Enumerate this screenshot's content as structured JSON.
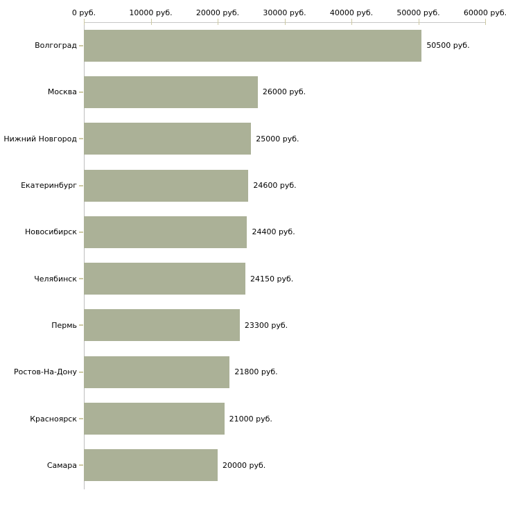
{
  "chart_data": {
    "type": "bar",
    "orientation": "horizontal",
    "title": "",
    "categories": [
      "Волгоград",
      "Москва",
      "Нижний Новгород",
      "Екатеринбург",
      "Новосибирск",
      "Челябинск",
      "Пермь",
      "Ростов-На-Дону",
      "Красноярск",
      "Самара"
    ],
    "values": [
      50500,
      26000,
      25000,
      24600,
      24400,
      24150,
      23300,
      21800,
      21000,
      20000
    ],
    "value_labels": [
      "50500 руб.",
      "26000 руб.",
      "25000 руб.",
      "24600 руб.",
      "24400 руб.",
      "24150 руб.",
      "23300 руб.",
      "21800 руб.",
      "21000 руб.",
      "20000 руб."
    ],
    "x_axis": {
      "position": "top",
      "min": 0,
      "max": 60000,
      "ticks": [
        0,
        10000,
        20000,
        30000,
        40000,
        50000,
        60000
      ],
      "tick_labels": [
        "0 руб.",
        "10000 руб.",
        "20000 руб.",
        "30000 руб.",
        "40000 руб.",
        "50000 руб.",
        "60000 руб."
      ]
    },
    "ylabel": "",
    "xlabel": "",
    "legend": "none",
    "grid": false,
    "colors": {
      "bar": "#abb197",
      "tick_mark": "#cdc9a2",
      "axis_line": "#c6c6c6",
      "text": "#000000",
      "background": "#ffffff"
    }
  }
}
